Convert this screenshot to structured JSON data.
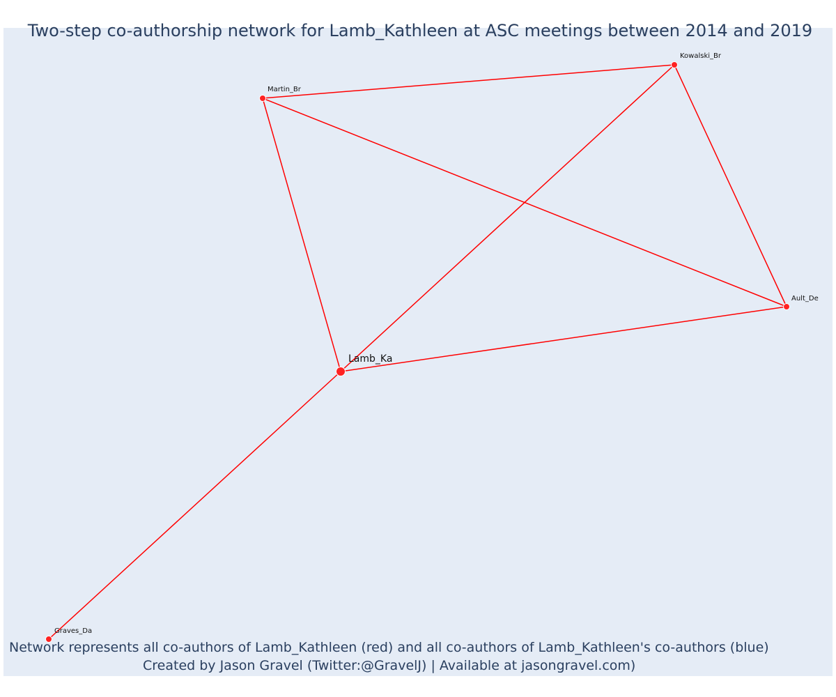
{
  "title": "Two-step co-authorship network for Lamb_Kathleen at ASC meetings between 2014 and 2019",
  "caption": {
    "line1": "Network represents all co-authors of Lamb_Kathleen (red) and all co-authors of Lamb_Kathleen's co-authors (blue)",
    "line2": "Created by Jason Gravel (Twitter:@GravelJ) | Available at jasongravel.com)"
  },
  "colors": {
    "edge": "#ff0000",
    "node": "#ff2222",
    "node_outline": "#ffffff",
    "plot_bg": "#e5ecf6",
    "text": "#2a3f5f"
  },
  "nodes": [
    {
      "id": "Lamb_Ka",
      "label": "Lamb_Ka",
      "focal": true
    },
    {
      "id": "Martin_Br",
      "label": "Martin_Br"
    },
    {
      "id": "Kowalski_Br",
      "label": "Kowalski_Br"
    },
    {
      "id": "Ault_De",
      "label": "Ault_De"
    },
    {
      "id": "Graves_Da",
      "label": "Graves_Da"
    }
  ],
  "edges": [
    [
      "Martin_Br",
      "Kowalski_Br"
    ],
    [
      "Martin_Br",
      "Ault_De"
    ],
    [
      "Martin_Br",
      "Lamb_Ka"
    ],
    [
      "Kowalski_Br",
      "Ault_De"
    ],
    [
      "Kowalski_Br",
      "Lamb_Ka"
    ],
    [
      "Ault_De",
      "Lamb_Ka"
    ],
    [
      "Lamb_Ka",
      "Graves_Da"
    ]
  ]
}
